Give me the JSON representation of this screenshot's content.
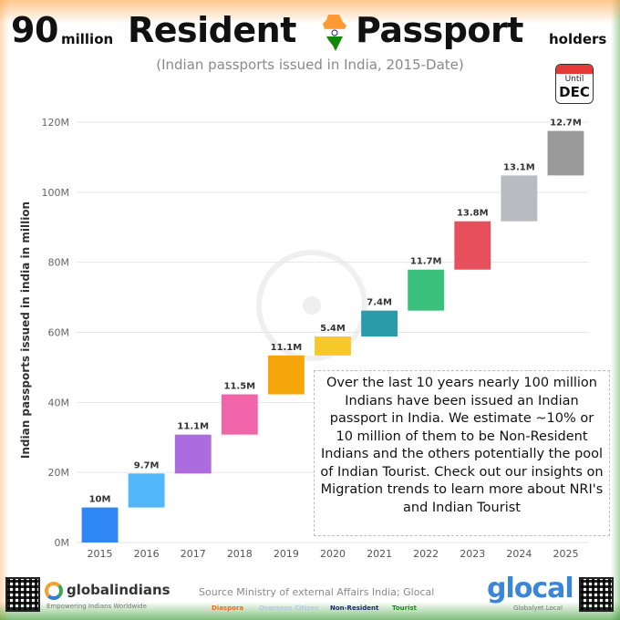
{
  "header": {
    "title_number": "90",
    "title_unit": "million",
    "title_word1": "Resident",
    "title_word2": "Passport",
    "title_tail": "holders",
    "subtitle": "(Indian passports issued in India, 2015-Date)",
    "calendar_until": "Until",
    "calendar_month": "DEC",
    "calendar_icon": "calendar-icon",
    "flag_icon": "india-map-flag-icon"
  },
  "chart_data": {
    "type": "bar",
    "subtype": "waterfall",
    "categories": [
      "2015",
      "2016",
      "2017",
      "2018",
      "2019",
      "2020",
      "2021",
      "2022",
      "2023",
      "2024",
      "2025"
    ],
    "values": [
      10,
      9.7,
      11.1,
      11.5,
      11.1,
      5.4,
      7.4,
      11.7,
      13.8,
      13.1,
      12.7
    ],
    "labels": [
      "10M",
      "9.7M",
      "11.1M",
      "11.5M",
      "11.1M",
      "5.4M",
      "7.4M",
      "11.7M",
      "13.8M",
      "13.1M",
      "12.7M"
    ],
    "colors": [
      "#2f87f5",
      "#52b6fb",
      "#ad6be0",
      "#f065a9",
      "#f5a60a",
      "#f6c82a",
      "#2b9aa9",
      "#39c07b",
      "#e84f5d",
      "#b8bcc0",
      "#9a9a9a"
    ],
    "ylabel": "Indian passports issued in india in million",
    "ylim": [
      0,
      120
    ],
    "yticks": [
      0,
      20,
      40,
      60,
      80,
      100,
      120
    ],
    "ytick_labels": [
      "0M",
      "20M",
      "40M",
      "60M",
      "80M",
      "100M",
      "120M"
    ],
    "grid": true
  },
  "insight": {
    "text": "Over the last 10 years nearly 100 million Indians have been issued an Indian passport in India. We estimate ~10% or 10 million of them to be Non-Resident Indians and the others potentially the pool of Indian Tourist. Check out our insights on Migration trends to learn more about NRI's and Indian Tourist"
  },
  "footer": {
    "source": "Source Ministry of external Affairs India; Glocal",
    "legend": [
      {
        "label": "Diaspora",
        "color": "#f26a1b"
      },
      {
        "label": "Overseas Citizen",
        "color": "#b9c7e8"
      },
      {
        "label": "Non-Resident",
        "color": "#1c2a6b"
      },
      {
        "label": "Tourist",
        "color": "#1f8a1f"
      }
    ],
    "brand_left": "globalindians",
    "brand_left_tagline": "Empowering Indians Worldwide",
    "brand_right": "glocal",
    "brand_right_tagline": "Globalyet Local",
    "qr_icon": "qr-code-icon"
  }
}
